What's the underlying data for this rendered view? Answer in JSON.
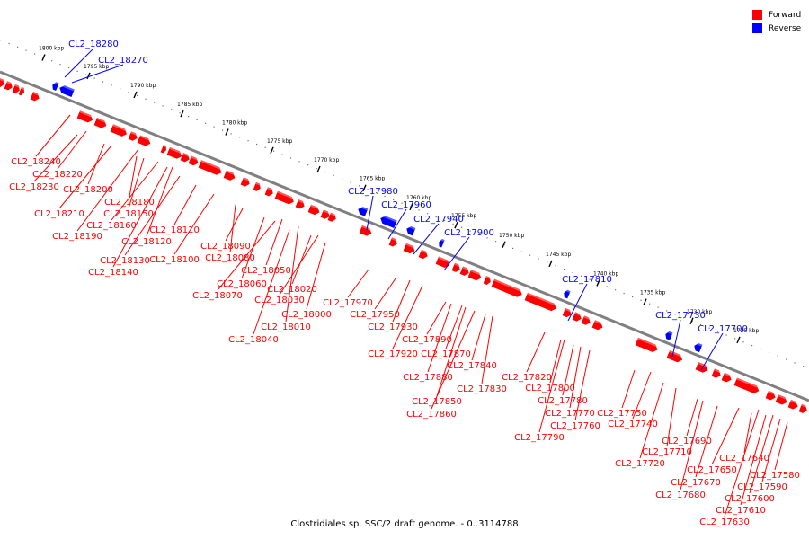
{
  "caption": "Clostridiales sp. SSC/2 draft genome. - 0..3114788",
  "legend": [
    {
      "label": "Forward",
      "color": "#ff0000"
    },
    {
      "label": "Reverse",
      "color": "#0000ff"
    }
  ],
  "colors": {
    "forward": "#ff0000",
    "reverse": "#0000ff",
    "backbone": "#808080"
  },
  "ticks": [
    "1800 kbp",
    "1795 kbp",
    "1790 kbp",
    "1785 kbp",
    "1780 kbp",
    "1775 kbp",
    "1770 kbp",
    "1765 kbp",
    "1760 kbp",
    "1755 kbp",
    "1750 kbp",
    "1745 kbp",
    "1740 kbp",
    "1735 kbp",
    "1730 kbp",
    "1725 kbp"
  ],
  "reverse_genes": [
    "CL2_18280",
    "CL2_18270",
    "CL2_17980",
    "CL2_17960",
    "CL2_17940",
    "CL2_17900",
    "CL2_17810",
    "CL2_17730",
    "CL2_17700"
  ],
  "forward_genes": [
    "CL2_18240",
    "CL2_18220",
    "CL2_18230",
    "CL2_18200",
    "CL2_18210",
    "CL2_18180",
    "CL2_18150",
    "CL2_18160",
    "CL2_18190",
    "CL2_18120",
    "CL2_18110",
    "CL2_18130",
    "CL2_18100",
    "CL2_18140",
    "CL2_18090",
    "CL2_18080",
    "CL2_18050",
    "CL2_18060",
    "CL2_18070",
    "CL2_18020",
    "CL2_18030",
    "CL2_18000",
    "CL2_18010",
    "CL2_18040",
    "CL2_17970",
    "CL2_17950",
    "CL2_17930",
    "CL2_17890",
    "CL2_17920",
    "CL2_17870",
    "CL2_17840",
    "CL2_17880",
    "CL2_17830",
    "CL2_17850",
    "CL2_17860",
    "CL2_17820",
    "CL2_17800",
    "CL2_17780",
    "CL2_17770",
    "CL2_17760",
    "CL2_17790",
    "CL2_17750",
    "CL2_17740",
    "CL2_17690",
    "CL2_17710",
    "CL2_17720",
    "CL2_17640",
    "CL2_17650",
    "CL2_17670",
    "CL2_17680",
    "CL2_17580",
    "CL2_17590",
    "CL2_17600",
    "CL2_17610",
    "CL2_17630"
  ]
}
